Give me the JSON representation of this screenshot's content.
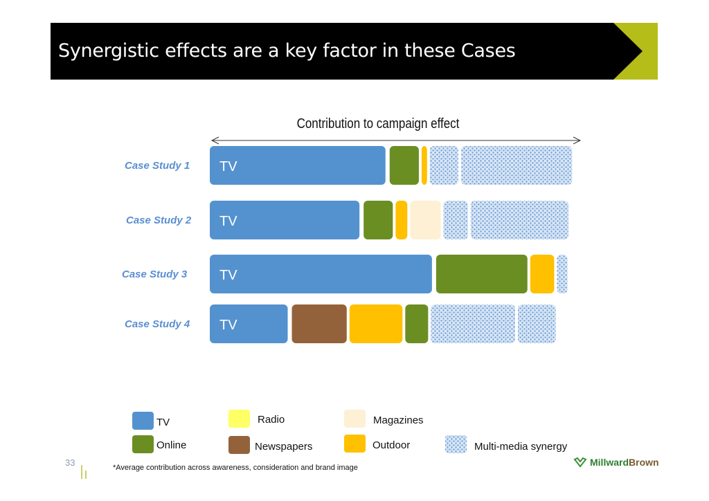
{
  "title": "Synergistic effects are a key factor in these Cases",
  "page_number": "33",
  "footnote": "*Average contribution across awareness, consideration and brand image",
  "logo": {
    "part1": "Millward",
    "part2": "Brown",
    "icon": "millwardbrown-logo-icon"
  },
  "colors": {
    "TV": "#5492cf",
    "Online": "#6b8e23",
    "Radio": "#ffff66",
    "Newspapers": "#94623a",
    "Magazines": "#fdf0d5",
    "Outdoor": "#ffc000",
    "Multi-media synergy": "#a9c4e6",
    "accent": "#b5bd19"
  },
  "chart_data": {
    "type": "bar",
    "stacked": true,
    "orientation": "horizontal",
    "title": "Contribution to campaign effect",
    "categories": [
      "Case Study 1",
      "Case Study 2",
      "Case Study 3",
      "Case Study 4"
    ],
    "note": "Values are relative contribution shares (% of total bar length), estimated visually; no axis values are printed.",
    "cases": [
      {
        "name": "Case Study 1",
        "inner_label": "TV",
        "segments": [
          {
            "channel": "TV",
            "value": 48
          },
          {
            "channel": "Online",
            "value": 8.6
          },
          {
            "channel": "Outdoor",
            "value": 2.2
          },
          {
            "channel": "Multi-media synergy",
            "value": 8.4
          },
          {
            "channel": "Multi-media synergy",
            "value": 30.6
          }
        ]
      },
      {
        "name": "Case Study 2",
        "inner_label": "TV",
        "segments": [
          {
            "channel": "TV",
            "value": 41
          },
          {
            "channel": "Online",
            "value": 8.6
          },
          {
            "channel": "Outdoor",
            "value": 3.9
          },
          {
            "channel": "Magazines",
            "value": 9
          },
          {
            "channel": "Multi-media synergy",
            "value": 7.3
          },
          {
            "channel": "Multi-media synergy",
            "value": 27
          }
        ]
      },
      {
        "name": "Case Study 3",
        "inner_label": "TV",
        "segments": [
          {
            "channel": "TV",
            "value": 60.5
          },
          {
            "channel": "Online",
            "value": 25.3
          },
          {
            "channel": "Outdoor",
            "value": 7.2
          },
          {
            "channel": "Multi-media synergy",
            "value": 3.6
          }
        ]
      },
      {
        "name": "Case Study 4",
        "inner_label": "TV",
        "segments": [
          {
            "channel": "TV",
            "value": 21.7
          },
          {
            "channel": "Newspapers",
            "value": 15.5
          },
          {
            "channel": "Outdoor",
            "value": 15
          },
          {
            "channel": "Online",
            "value": 6.9
          },
          {
            "channel": "Multi-media synergy",
            "value": 23.4
          },
          {
            "channel": "Multi-media synergy",
            "value": 10.9
          }
        ]
      }
    ],
    "legend": {
      "placement": "bottom",
      "items": [
        "TV",
        "Radio",
        "Magazines",
        "Online",
        "Newspapers",
        "Outdoor",
        "Multi-media synergy"
      ]
    }
  }
}
